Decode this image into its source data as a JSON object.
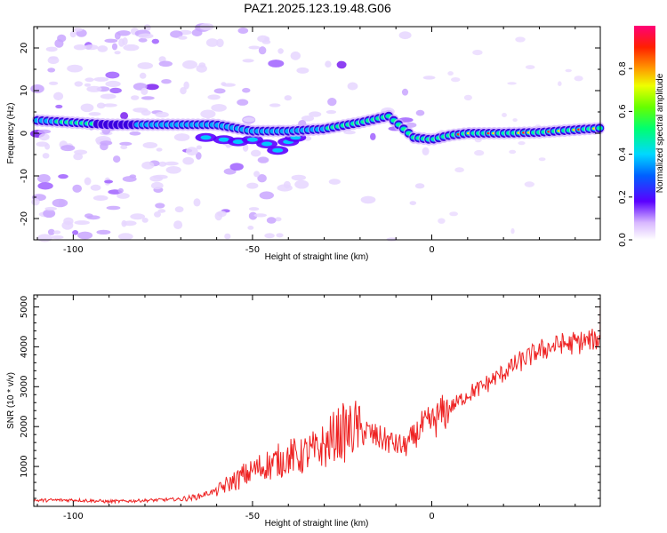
{
  "title": "PAZ1.2025.123.19.48.G06",
  "chart_data": [
    {
      "type": "heatmap",
      "xlabel": "Height of straight line (km)",
      "ylabel": "Frequency (Hz)",
      "xlim": [
        -111,
        47
      ],
      "ylim": [
        -25,
        25
      ],
      "xticks": [
        -100,
        -50,
        0
      ],
      "yticks": [
        -20,
        -10,
        0,
        10,
        20
      ],
      "colorbar": {
        "label": "Normalized spectral amplitude",
        "range": [
          0,
          1
        ],
        "ticks": [
          0.0,
          0.2,
          0.4,
          0.6,
          0.8
        ],
        "tick_labels": [
          "0.0",
          "0.2",
          "0.4",
          "0.6",
          "0.8"
        ]
      },
      "ridge": {
        "x": [
          -110,
          -100,
          -90,
          -80,
          -70,
          -60,
          -50,
          -40,
          -30,
          -20,
          -12,
          -5,
          0,
          5,
          10,
          20,
          30,
          40,
          47
        ],
        "y": [
          3,
          2.5,
          2,
          2,
          2,
          2,
          0.5,
          0.5,
          1,
          2.5,
          4,
          -1,
          -1.5,
          -0.5,
          0,
          0,
          0.2,
          0.8,
          1.2
        ]
      }
    },
    {
      "type": "line",
      "xlabel": "Height of straight line (km)",
      "ylabel": "SNR (10 * v/v)",
      "xlim": [
        -111,
        47
      ],
      "ylim": [
        0,
        5300
      ],
      "xticks": [
        -100,
        -50,
        0
      ],
      "yticks": [
        1000,
        2000,
        3000,
        4000,
        5000
      ],
      "color": "#ee2222",
      "series": [
        {
          "x": [
            -111,
            -100,
            -90,
            -80,
            -70,
            -65,
            -60,
            -55,
            -50,
            -45,
            -40,
            -35,
            -32,
            -30,
            -28,
            -25,
            -22,
            -20,
            -18,
            -15,
            -12,
            -10,
            -8,
            -5,
            -3,
            0,
            5,
            10,
            15,
            20,
            25,
            30,
            35,
            40,
            45,
            47
          ],
          "y": [
            150,
            160,
            120,
            150,
            180,
            250,
            400,
            650,
            900,
            1050,
            1200,
            1300,
            1400,
            1500,
            1650,
            1850,
            1950,
            1900,
            1850,
            1750,
            1650,
            1550,
            1500,
            1700,
            1950,
            2100,
            2450,
            2800,
            3050,
            3350,
            3650,
            3900,
            4050,
            4100,
            4150,
            4170
          ]
        }
      ]
    }
  ]
}
